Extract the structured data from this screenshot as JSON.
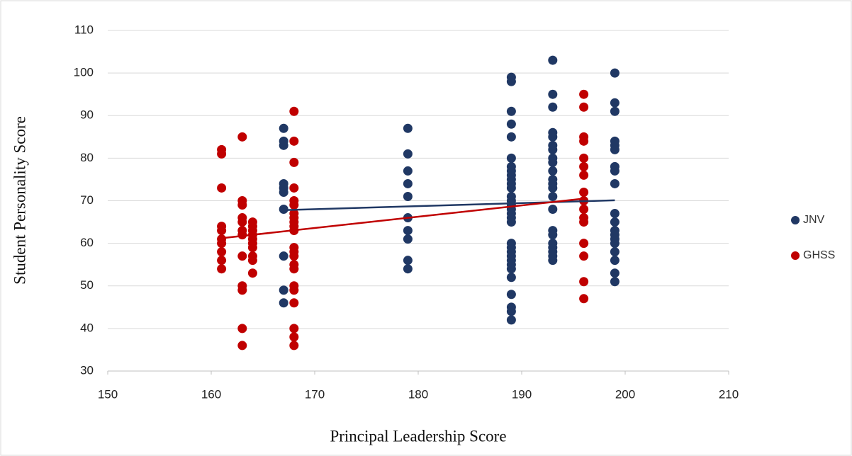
{
  "chart_data": {
    "type": "scatter",
    "xlabel": "Principal Leadership Score",
    "ylabel": "Student Personality Score",
    "xlim": [
      150,
      210
    ],
    "xticks": [
      150,
      160,
      170,
      180,
      190,
      200,
      210
    ],
    "ylim": [
      30,
      110
    ],
    "yticks": [
      30,
      40,
      50,
      60,
      70,
      80,
      90,
      100,
      110
    ],
    "grid": true,
    "legend": "right",
    "series": [
      {
        "name": "JNV",
        "color": "#203864",
        "x": [
          167,
          167,
          167,
          167,
          167,
          167,
          167,
          167,
          167,
          167,
          179,
          179,
          179,
          179,
          179,
          179,
          179,
          179,
          179,
          179,
          189,
          189,
          189,
          189,
          189,
          189,
          189,
          189,
          189,
          189,
          189,
          189,
          189,
          189,
          189,
          189,
          189,
          189,
          189,
          189,
          189,
          189,
          189,
          189,
          189,
          189,
          189,
          189,
          189,
          189,
          189,
          193,
          193,
          193,
          193,
          193,
          193,
          193,
          193,
          193,
          193,
          193,
          193,
          193,
          193,
          193,
          193,
          193,
          193,
          193,
          193,
          193,
          193,
          199,
          199,
          199,
          199,
          199,
          199,
          199,
          199,
          199,
          199,
          199,
          199,
          199,
          199,
          199,
          199,
          199,
          199,
          199
        ],
        "y": [
          87,
          84,
          83,
          74,
          73,
          72,
          68,
          57,
          49,
          46,
          87,
          81,
          77,
          74,
          71,
          66,
          63,
          61,
          56,
          54,
          99,
          98,
          91,
          88,
          85,
          80,
          78,
          77,
          76,
          75,
          74,
          73,
          71,
          70,
          69,
          68,
          67,
          66,
          65,
          60,
          59,
          58,
          57,
          56,
          55,
          54,
          52,
          48,
          45,
          44,
          42,
          103,
          95,
          92,
          86,
          85,
          83,
          82,
          80,
          79,
          77,
          75,
          74,
          73,
          71,
          68,
          63,
          62,
          60,
          59,
          58,
          57,
          56,
          100,
          93,
          91,
          84,
          83,
          82,
          78,
          77,
          74,
          67,
          65,
          63,
          62,
          61,
          60,
          58,
          56,
          53,
          51
        ],
        "trendline": {
          "x": [
            167,
            199
          ],
          "y": [
            67.8,
            70.1
          ]
        }
      },
      {
        "name": "GHSS",
        "color": "#c00000",
        "x": [
          161,
          161,
          161,
          161,
          161,
          161,
          161,
          161,
          161,
          161,
          163,
          163,
          163,
          163,
          163,
          163,
          163,
          163,
          163,
          163,
          163,
          163,
          164,
          164,
          164,
          164,
          164,
          164,
          164,
          164,
          164,
          164,
          168,
          168,
          168,
          168,
          168,
          168,
          168,
          168,
          168,
          168,
          168,
          168,
          168,
          168,
          168,
          168,
          168,
          168,
          168,
          168,
          168,
          168,
          196,
          196,
          196,
          196,
          196,
          196,
          196,
          196,
          196,
          196,
          196,
          196,
          196,
          196,
          196,
          196
        ],
        "y": [
          82,
          81,
          73,
          64,
          63,
          61,
          60,
          58,
          56,
          54,
          85,
          70,
          69,
          66,
          65,
          63,
          62,
          57,
          50,
          49,
          40,
          36,
          65,
          64,
          63,
          62,
          61,
          60,
          59,
          57,
          56,
          53,
          91,
          84,
          79,
          73,
          70,
          69,
          67,
          66,
          65,
          64,
          63,
          59,
          58,
          57,
          55,
          54,
          50,
          49,
          46,
          40,
          38,
          36,
          95,
          92,
          85,
          84,
          80,
          78,
          76,
          72,
          70,
          68,
          66,
          65,
          60,
          57,
          51,
          47
        ],
        "trendline": {
          "x": [
            161,
            196
          ],
          "y": [
            61.2,
            70.5
          ]
        }
      }
    ]
  }
}
